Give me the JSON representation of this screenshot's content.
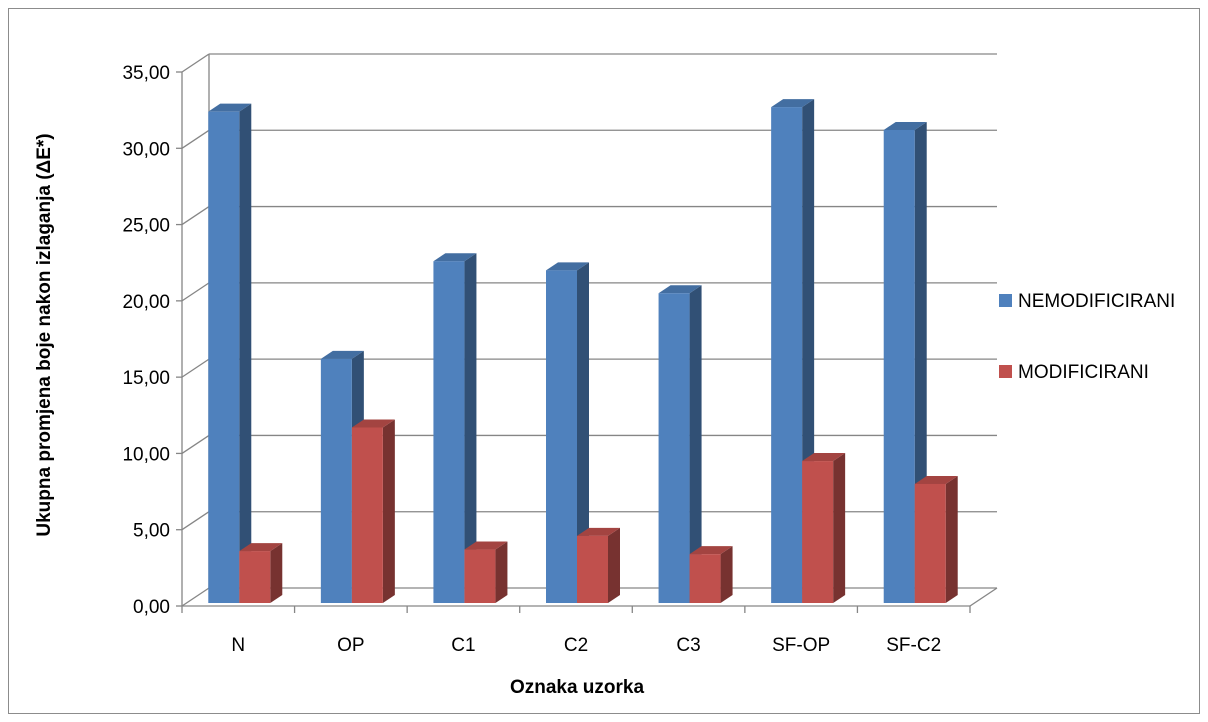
{
  "chart_data": {
    "type": "bar",
    "style": "3d-clustered-column",
    "categories": [
      "N",
      "OP",
      "C1",
      "C2",
      "C3",
      "SF-OP",
      "SF-C2"
    ],
    "series": [
      {
        "name": "NEMODIFICIRANI",
        "color": "#4F81BD",
        "values": [
          32.4,
          16.2,
          22.6,
          22.0,
          20.5,
          32.7,
          31.2
        ]
      },
      {
        "name": "MODIFICIRANI",
        "color": "#C0504D",
        "values": [
          3.6,
          11.7,
          3.7,
          4.6,
          3.4,
          9.5,
          8.0
        ]
      }
    ],
    "title": "",
    "xlabel": "Oznaka uzorka",
    "ylabel": "Ukupna promjena boje nakon izlaganja (ΔE*)",
    "ylim": [
      0,
      35
    ],
    "yticks": [
      "0,00",
      "5,00",
      "10,00",
      "15,00",
      "20,00",
      "25,00",
      "30,00",
      "35,00"
    ],
    "grid": true,
    "legend_position": "right"
  }
}
